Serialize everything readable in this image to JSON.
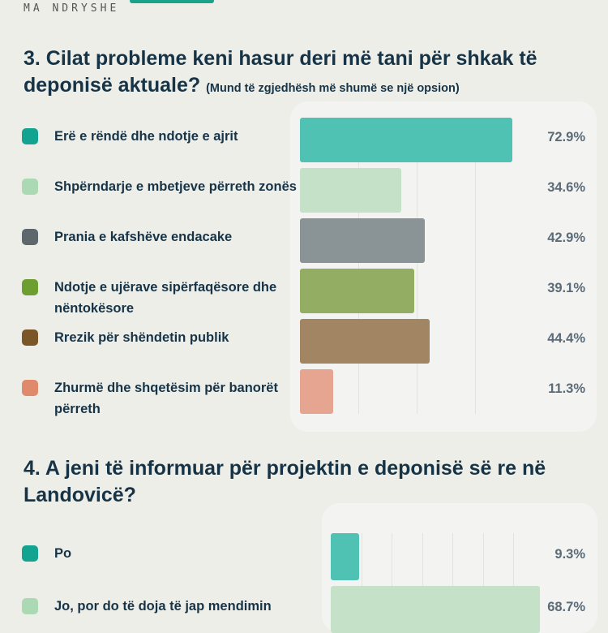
{
  "header": {
    "brand": "MA NDRYSHE"
  },
  "q3": {
    "title": "3. Cilat probleme keni hasur deri më tani për shkak të deponisë aktuale?",
    "subtitle": "(Mund të zgjedhësh më shumë se një opsion)"
  },
  "q4": {
    "title": "4. A jeni të informuar për projektin e deponisë së re në Landovicë?"
  },
  "chart_data": [
    {
      "type": "bar",
      "orientation": "horizontal",
      "title": "3. Cilat probleme keni hasur deri më tani për shkak të deponisë aktuale?",
      "categories": [
        "Erë e rëndë dhe ndotje e ajrit",
        "Shpërndarje e mbetjeve përreth zonës",
        "Prania e kafshëve endacake",
        "Ndotje e ujërave sipërfaqësore dhe nëntokësore",
        "Rrezik për shëndetin publik",
        "Zhurmë dhe shqetësim për banorët përreth"
      ],
      "values": [
        72.9,
        34.6,
        42.9,
        39.1,
        44.4,
        11.3
      ],
      "labels": [
        "72.9%",
        "34.6%",
        "42.9%",
        "39.1%",
        "44.4%",
        "11.3%"
      ],
      "colors": [
        "#4fc2b4",
        "#c5e2c8",
        "#8a9396",
        "#93ad63",
        "#a28563",
        "#e6a590"
      ],
      "dot_colors": [
        "#13a391",
        "#aad9b4",
        "#5e676c",
        "#6e9e30",
        "#7a5628",
        "#e08a6c"
      ],
      "xlim": [
        0,
        100
      ]
    },
    {
      "type": "bar",
      "orientation": "horizontal",
      "title": "4. A jeni të informuar për projektin e deponisë së re në Landovicë?",
      "categories": [
        "Po",
        "Jo, por do të doja të jap mendimin"
      ],
      "values": [
        9.3,
        68.7
      ],
      "labels": [
        "9.3%",
        "68.7%"
      ],
      "colors": [
        "#4fc2b4",
        "#c5e2c8"
      ],
      "dot_colors": [
        "#13a391",
        "#aad9b4"
      ],
      "xlim": [
        0,
        100
      ]
    }
  ]
}
